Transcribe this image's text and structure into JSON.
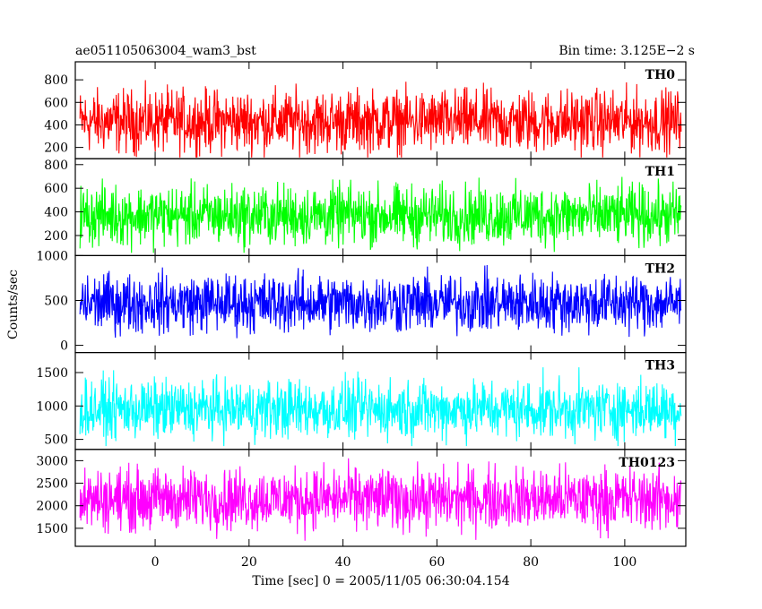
{
  "header": {
    "title": "ae051105063004_wam3_bst",
    "bin_time": "Bin time: 3.125E−2 s"
  },
  "chart_data": {
    "type": "line",
    "xlabel": "Time [sec] 0 = 2005/11/05 06:30:04.154",
    "ylabel": "Counts/sec",
    "xlim": [
      -17,
      113
    ],
    "x_range": [
      -16,
      112
    ],
    "x_ticks": [
      0,
      20,
      40,
      60,
      80,
      100
    ],
    "grid": false,
    "panels": [
      {
        "name": "TH0",
        "color": "#ff0000",
        "ylim": [
          100,
          960
        ],
        "ticks": [
          200,
          400,
          600,
          800
        ],
        "mean": 430,
        "low": 110,
        "high": 960
      },
      {
        "name": "TH1",
        "color": "#00ff00",
        "ylim": [
          30,
          850
        ],
        "ticks": [
          200,
          400,
          600,
          800
        ],
        "mean": 370,
        "low": 50,
        "high": 830
      },
      {
        "name": "TH2",
        "color": "#0000ff",
        "ylim": [
          -80,
          1000
        ],
        "ticks": [
          0,
          500,
          1000
        ],
        "mean": 470,
        "low": 0,
        "high": 1000
      },
      {
        "name": "TH3",
        "color": "#00ffff",
        "ylim": [
          350,
          1800
        ],
        "ticks": [
          500,
          1000,
          1500
        ],
        "mean": 950,
        "low": 400,
        "high": 1750
      },
      {
        "name": "TH0123",
        "color": "#ff00ff",
        "ylim": [
          1100,
          3250
        ],
        "ticks": [
          1500,
          2000,
          2500,
          3000
        ],
        "mean": 2150,
        "low": 1150,
        "high": 3250
      }
    ]
  }
}
